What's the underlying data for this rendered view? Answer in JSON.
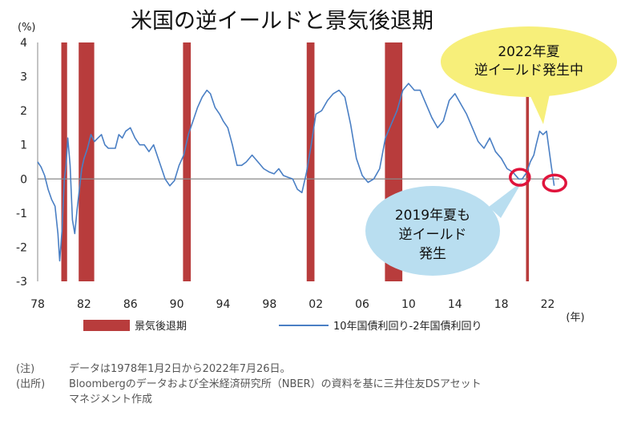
{
  "chart_data": {
    "type": "line",
    "title": "米国の逆イールドと景気後退期",
    "y_unit": "(%)",
    "x_unit": "(年)",
    "ylim": [
      -3,
      4
    ],
    "yticks": [
      "4",
      "3",
      "2",
      "1",
      "0",
      "-1",
      "-2",
      "-3"
    ],
    "xlim": [
      1978,
      2023
    ],
    "xticks": [
      "78",
      "82",
      "86",
      "90",
      "94",
      "98",
      "02",
      "06",
      "10",
      "14",
      "18",
      "22"
    ],
    "legend": {
      "recession_label": "景気後退期",
      "series_label": "10年国債利回り-2年国債利回り"
    },
    "recessions": [
      {
        "start": 1980.04,
        "end": 1980.54
      },
      {
        "start": 1981.54,
        "end": 1982.88
      },
      {
        "start": 1990.54,
        "end": 1991.21
      },
      {
        "start": 2001.21,
        "end": 2001.88
      },
      {
        "start": 2007.96,
        "end": 2009.46
      },
      {
        "start": 2020.13,
        "end": 2020.38
      }
    ],
    "series": [
      {
        "color": "#4a7fc4",
        "x": [
          1978.0,
          1978.3,
          1978.6,
          1978.9,
          1979.2,
          1979.5,
          1979.75,
          1979.9,
          1980.1,
          1980.3,
          1980.45,
          1980.6,
          1980.8,
          1981.0,
          1981.2,
          1981.4,
          1981.6,
          1981.8,
          1982.0,
          1982.3,
          1982.6,
          1982.9,
          1983.2,
          1983.5,
          1983.8,
          1984.1,
          1984.4,
          1984.7,
          1985.0,
          1985.3,
          1985.6,
          1986.0,
          1986.4,
          1986.8,
          1987.2,
          1987.6,
          1988.0,
          1988.5,
          1989.0,
          1989.4,
          1989.8,
          1990.2,
          1990.6,
          1991.0,
          1991.4,
          1991.8,
          1992.2,
          1992.6,
          1992.9,
          1993.3,
          1993.7,
          1994.0,
          1994.4,
          1994.8,
          1995.2,
          1995.6,
          1996.0,
          1996.5,
          1997.0,
          1997.5,
          1998.0,
          1998.4,
          1998.8,
          1999.2,
          1999.6,
          2000.0,
          2000.4,
          2000.8,
          2001.2,
          2001.6,
          2002.0,
          2002.5,
          2003.0,
          2003.5,
          2004.0,
          2004.5,
          2005.0,
          2005.5,
          2006.0,
          2006.5,
          2007.0,
          2007.5,
          2008.0,
          2008.5,
          2009.0,
          2009.5,
          2010.0,
          2010.5,
          2011.0,
          2011.5,
          2012.0,
          2012.5,
          2013.0,
          2013.5,
          2014.0,
          2014.5,
          2015.0,
          2015.5,
          2016.0,
          2016.5,
          2017.0,
          2017.5,
          2018.0,
          2018.5,
          2019.0,
          2019.5,
          2019.8,
          2020.2,
          2020.5,
          2020.8,
          2021.0,
          2021.3,
          2021.6,
          2021.9,
          2022.1,
          2022.3,
          2022.56
        ],
        "y": [
          0.5,
          0.35,
          0.1,
          -0.3,
          -0.6,
          -0.8,
          -1.6,
          -2.4,
          -1.5,
          0.0,
          0.4,
          1.2,
          0.4,
          -1.2,
          -1.6,
          -0.9,
          -0.3,
          0.3,
          0.6,
          0.9,
          1.3,
          1.1,
          1.2,
          1.3,
          1.0,
          0.9,
          0.9,
          0.9,
          1.3,
          1.2,
          1.4,
          1.5,
          1.2,
          1.0,
          1.0,
          0.8,
          1.0,
          0.5,
          0.0,
          -0.2,
          -0.05,
          0.4,
          0.7,
          1.3,
          1.7,
          2.1,
          2.4,
          2.6,
          2.5,
          2.1,
          1.9,
          1.7,
          1.5,
          1.0,
          0.4,
          0.4,
          0.5,
          0.7,
          0.5,
          0.3,
          0.2,
          0.15,
          0.3,
          0.1,
          0.05,
          0.0,
          -0.3,
          -0.4,
          0.2,
          1.0,
          1.9,
          2.0,
          2.3,
          2.5,
          2.6,
          2.4,
          1.6,
          0.6,
          0.1,
          -0.1,
          0.0,
          0.3,
          1.2,
          1.6,
          2.0,
          2.6,
          2.8,
          2.6,
          2.6,
          2.2,
          1.8,
          1.5,
          1.7,
          2.3,
          2.5,
          2.2,
          1.9,
          1.5,
          1.1,
          0.9,
          1.2,
          0.8,
          0.6,
          0.3,
          0.2,
          0.0,
          0.0,
          0.2,
          0.5,
          0.7,
          1.0,
          1.4,
          1.3,
          1.4,
          0.9,
          0.4,
          -0.2
        ]
      }
    ],
    "annotations": [
      {
        "lines": [
          "2022年夏",
          "逆イールド発生中"
        ],
        "bg": "#f7ef7a"
      },
      {
        "lines": [
          "2019年夏も",
          "逆イールド",
          "発生"
        ],
        "bg": "#b9def0"
      }
    ]
  },
  "notes": [
    {
      "label": "(注)",
      "text": "データは1978年1月2日から2022年7月26日。"
    },
    {
      "label": "(出所)",
      "text": "Bloombergのデータおよび全米経済研究所（NBER）の資料を基に三井住友DSアセット"
    },
    {
      "label": "",
      "text": "マネジメント作成"
    }
  ]
}
